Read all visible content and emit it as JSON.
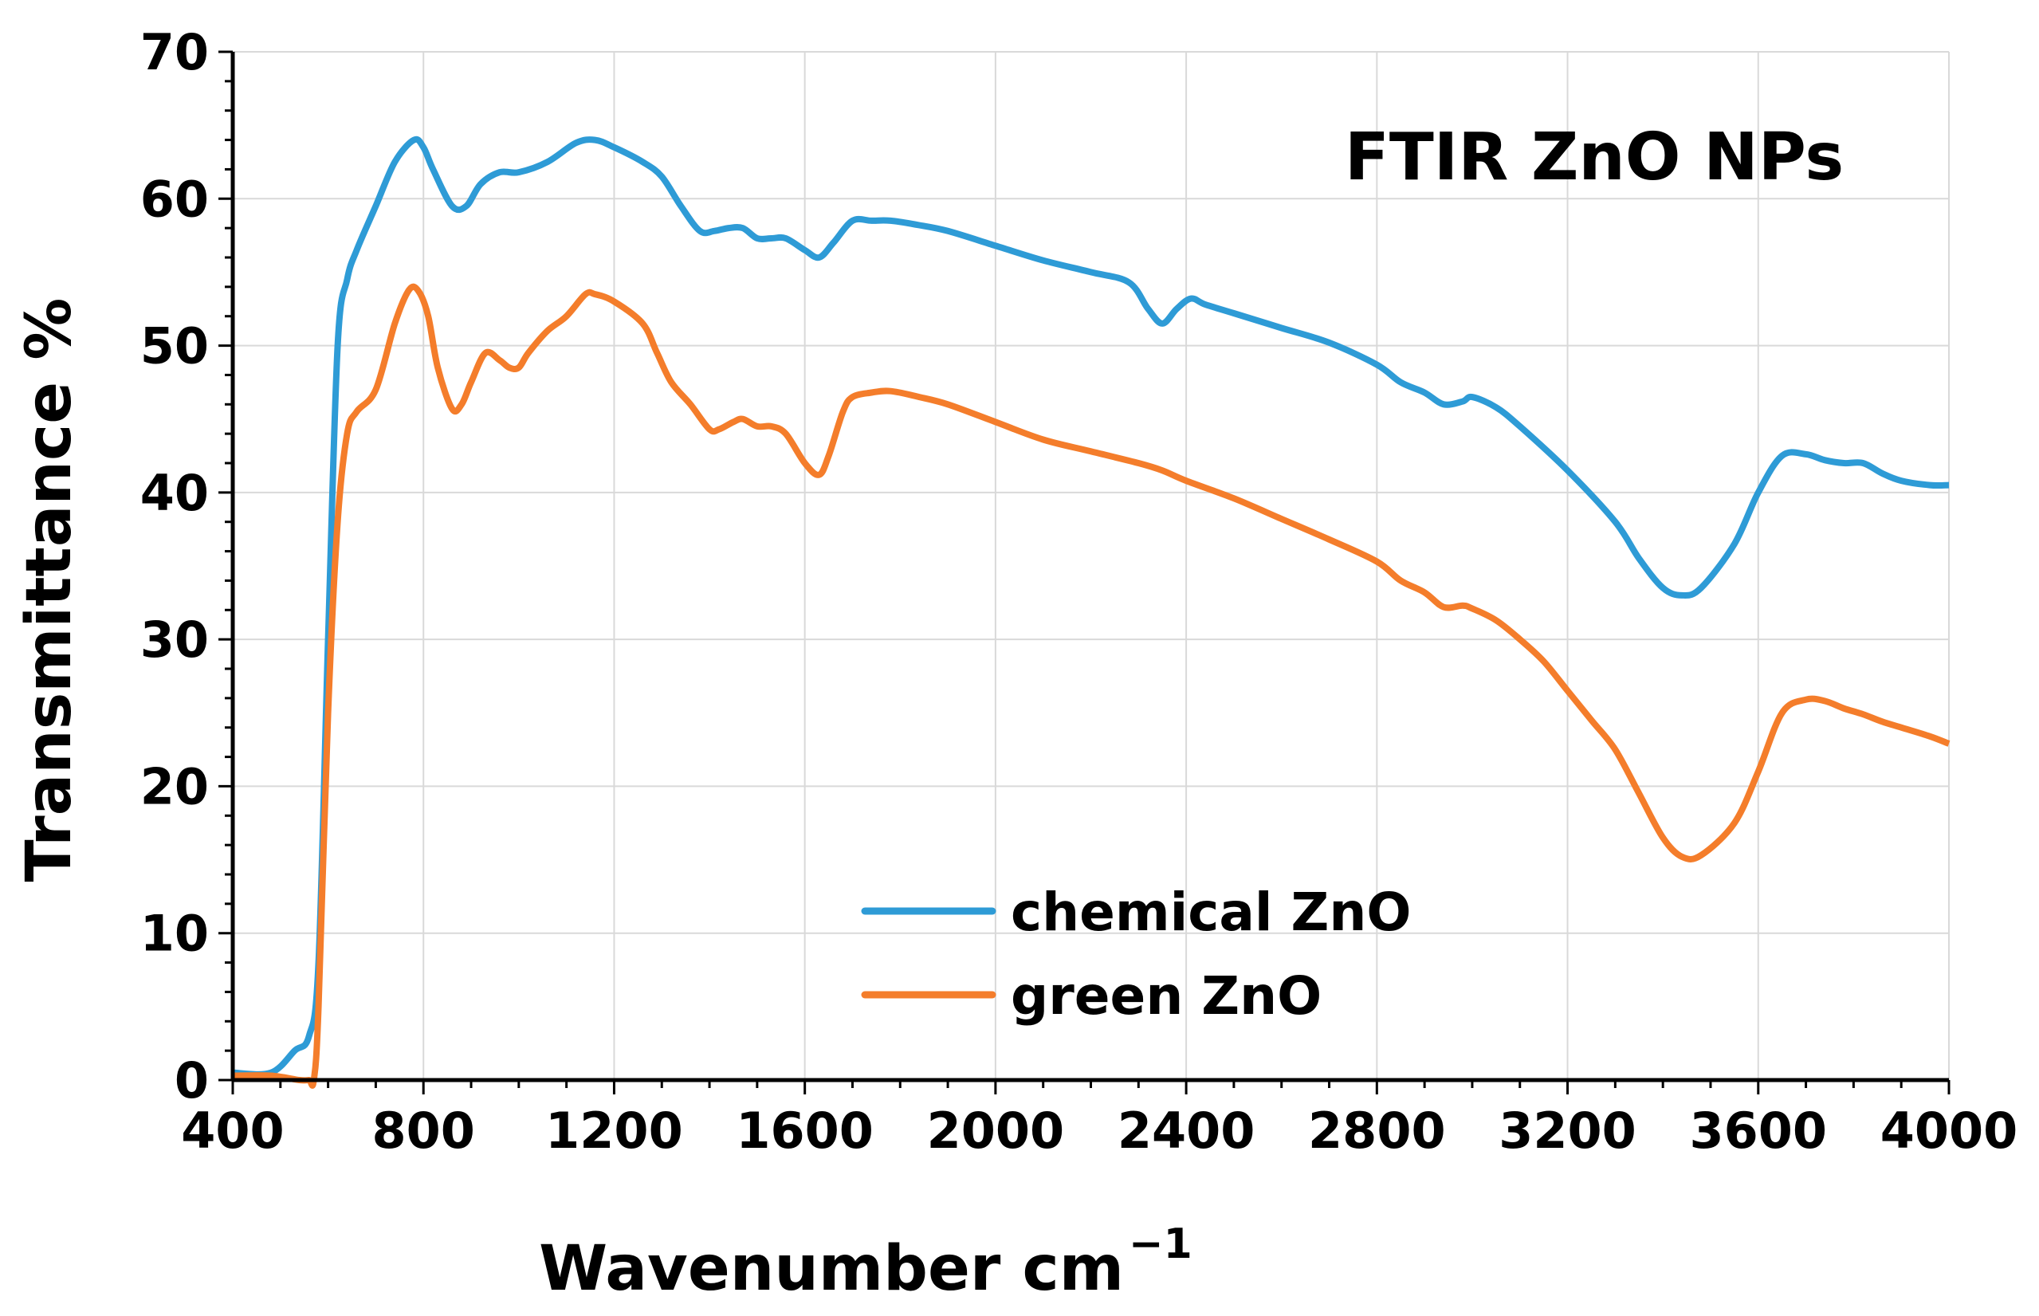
{
  "chart_data": {
    "type": "line",
    "title": "FTIR ZnO NPs",
    "xlabel": "Wavenumber cm",
    "xlabel_superscript": "−1",
    "ylabel": "Transmittance %",
    "xlim": [
      400,
      4000
    ],
    "ylim": [
      0,
      70
    ],
    "xticks": [
      400,
      800,
      1200,
      1600,
      2000,
      2400,
      2800,
      3200,
      3600,
      4000
    ],
    "yticks": [
      0,
      10,
      20,
      30,
      40,
      50,
      60,
      70
    ],
    "grid": true,
    "legend_position": "bottom-center",
    "series": [
      {
        "name": "chemical ZnO",
        "color": "#2E9BD6",
        "x": [
          400,
          480,
          530,
          560,
          580,
          600,
          620,
          640,
          660,
          700,
          740,
          780,
          800,
          820,
          860,
          890,
          920,
          960,
          1000,
          1060,
          1120,
          1160,
          1200,
          1260,
          1300,
          1340,
          1380,
          1410,
          1440,
          1470,
          1500,
          1530,
          1560,
          1600,
          1630,
          1660,
          1700,
          1740,
          1780,
          1840,
          1900,
          2000,
          2100,
          2200,
          2280,
          2320,
          2350,
          2380,
          2410,
          2440,
          2500,
          2600,
          2700,
          2800,
          2850,
          2900,
          2940,
          2980,
          3000,
          3050,
          3100,
          3200,
          3300,
          3350,
          3400,
          3440,
          3480,
          3550,
          3600,
          3650,
          3700,
          3740,
          3780,
          3820,
          3860,
          3900,
          3960,
          4000
        ],
        "y": [
          0.5,
          0.5,
          2,
          3,
          8,
          30,
          50,
          54.5,
          56.5,
          59.5,
          62.5,
          64,
          63.5,
          62,
          59.5,
          59.5,
          61,
          61.8,
          61.8,
          62.5,
          63.8,
          64,
          63.5,
          62.5,
          61.5,
          59.5,
          57.8,
          57.8,
          58,
          58,
          57.3,
          57.3,
          57.3,
          56.5,
          56,
          57,
          58.5,
          58.5,
          58.5,
          58.2,
          57.8,
          56.8,
          55.8,
          55,
          54.3,
          52.5,
          51.5,
          52.5,
          53.2,
          52.8,
          52.2,
          51.2,
          50.2,
          48.7,
          47.5,
          46.8,
          46,
          46.2,
          46.5,
          45.8,
          44.5,
          41.5,
          38,
          35.5,
          33.5,
          33,
          33.5,
          36.5,
          40,
          42.5,
          42.6,
          42.2,
          42,
          42,
          41.3,
          40.8,
          40.5,
          40.5
        ]
      },
      {
        "name": "green ZnO",
        "color": "#F47D2B",
        "x": [
          400,
          480,
          540,
          560,
          570,
          580,
          600,
          620,
          640,
          660,
          700,
          740,
          770,
          790,
          810,
          830,
          860,
          880,
          900,
          930,
          960,
          980,
          1000,
          1020,
          1060,
          1100,
          1140,
          1160,
          1200,
          1260,
          1290,
          1320,
          1360,
          1400,
          1420,
          1450,
          1470,
          1500,
          1530,
          1560,
          1600,
          1630,
          1650,
          1680,
          1700,
          1740,
          1780,
          1840,
          1900,
          2000,
          2100,
          2200,
          2300,
          2350,
          2400,
          2500,
          2600,
          2700,
          2800,
          2850,
          2900,
          2940,
          2980,
          3000,
          3050,
          3100,
          3150,
          3200,
          3250,
          3300,
          3350,
          3400,
          3440,
          3480,
          3550,
          3600,
          3650,
          3700,
          3740,
          3780,
          3820,
          3860,
          3900,
          3960,
          4000
        ],
        "y": [
          0.3,
          0.3,
          0,
          0,
          0,
          5,
          25,
          38,
          44,
          45.5,
          47,
          51.5,
          53.8,
          53.7,
          52,
          48.5,
          45.7,
          46,
          47.5,
          49.5,
          49,
          48.5,
          48.5,
          49.5,
          51,
          52,
          53.5,
          53.5,
          53,
          51.5,
          49.5,
          47.5,
          46,
          44.3,
          44.3,
          44.8,
          45,
          44.5,
          44.5,
          44,
          42,
          41.2,
          42.5,
          45.5,
          46.5,
          46.8,
          46.9,
          46.5,
          46,
          44.8,
          43.6,
          42.8,
          42,
          41.5,
          40.8,
          39.6,
          38.2,
          36.8,
          35.3,
          34,
          33.2,
          32.2,
          32.3,
          32.1,
          31.3,
          30,
          28.5,
          26.5,
          24.5,
          22.5,
          19.5,
          16.5,
          15.2,
          15.3,
          17.5,
          21,
          25,
          25.9,
          25.8,
          25.3,
          24.9,
          24.4,
          24,
          23.4,
          22.9
        ]
      }
    ]
  }
}
